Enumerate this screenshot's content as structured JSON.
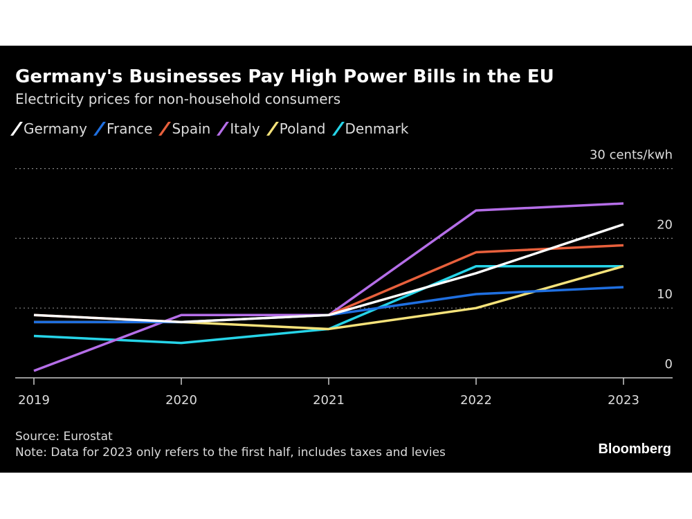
{
  "chart_data": {
    "type": "line",
    "title": "Germany's Businesses Pay High Power Bills in the EU",
    "subtitle": "Electricity prices for non-household consumers",
    "x": [
      "2019",
      "2020",
      "2021",
      "2022",
      "2023"
    ],
    "ylim": [
      0,
      30
    ],
    "yticks": [
      0,
      10,
      20,
      30
    ],
    "ytick_labels": [
      "0",
      "10",
      "20",
      "30 cents/kwh"
    ],
    "grid": true,
    "legend": "top-left",
    "series": [
      {
        "name": "Germany",
        "color": "#ffffff",
        "values": [
          9,
          8,
          9,
          15,
          22
        ]
      },
      {
        "name": "France",
        "color": "#1f6fe0",
        "values": [
          8,
          8,
          9,
          12,
          13
        ]
      },
      {
        "name": "Spain",
        "color": "#e8603c",
        "values": [
          9,
          8,
          9,
          18,
          19
        ]
      },
      {
        "name": "Italy",
        "color": "#b56ee8",
        "values": [
          1,
          9,
          9,
          24,
          25
        ]
      },
      {
        "name": "Poland",
        "color": "#f5e27a",
        "values": [
          8,
          8,
          7,
          10,
          16
        ]
      },
      {
        "name": "Denmark",
        "color": "#26d4e8",
        "values": [
          6,
          5,
          7,
          16,
          16
        ]
      }
    ],
    "source": "Source: Eurostat",
    "note": "Note: Data for 2023 only refers to the first half, includes taxes and levies"
  },
  "brand": "Bloomberg"
}
